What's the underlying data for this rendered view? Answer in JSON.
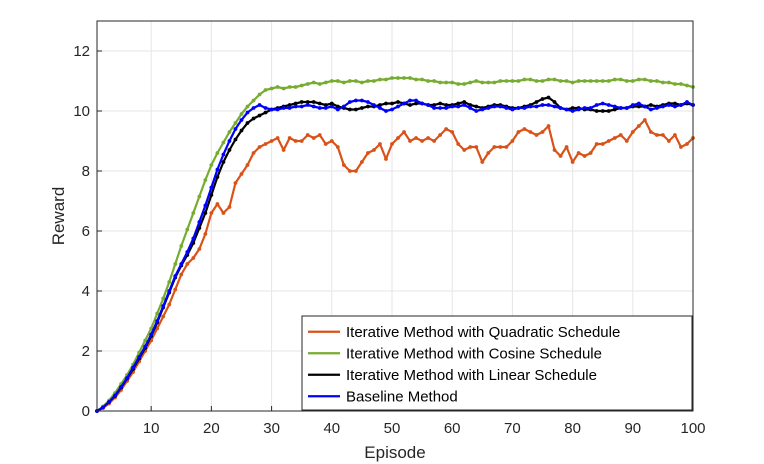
{
  "chart_data": {
    "type": "line",
    "title": "",
    "xlabel": "Episode",
    "ylabel": "Reward",
    "xlim": [
      1,
      100
    ],
    "ylim": [
      0,
      13
    ],
    "xticks": [
      10,
      20,
      30,
      40,
      50,
      60,
      70,
      80,
      90,
      100
    ],
    "yticks": [
      0,
      2,
      4,
      6,
      8,
      10,
      12
    ],
    "grid": true,
    "legend_position": "bottom-right",
    "series": [
      {
        "name": "Iterative Method with Quadratic Schedule",
        "color": "#D95319",
        "markers": true,
        "x": [
          1,
          2,
          3,
          4,
          5,
          6,
          7,
          8,
          9,
          10,
          11,
          12,
          13,
          14,
          15,
          16,
          17,
          18,
          19,
          20,
          21,
          22,
          23,
          24,
          25,
          26,
          27,
          28,
          29,
          30,
          31,
          32,
          33,
          34,
          35,
          36,
          37,
          38,
          39,
          40,
          41,
          42,
          43,
          44,
          45,
          46,
          47,
          48,
          49,
          50,
          51,
          52,
          53,
          54,
          55,
          56,
          57,
          58,
          59,
          60,
          61,
          62,
          63,
          64,
          65,
          66,
          67,
          68,
          69,
          70,
          71,
          72,
          73,
          74,
          75,
          76,
          77,
          78,
          79,
          80,
          81,
          82,
          83,
          84,
          85,
          86,
          87,
          88,
          89,
          90,
          91,
          92,
          93,
          94,
          95,
          96,
          97,
          98,
          99,
          100
        ],
        "y": [
          0.0,
          0.1,
          0.25,
          0.45,
          0.7,
          1.0,
          1.3,
          1.65,
          2.0,
          2.35,
          2.75,
          3.15,
          3.55,
          4.05,
          4.55,
          4.9,
          5.1,
          5.4,
          5.9,
          6.6,
          6.9,
          6.6,
          6.8,
          7.6,
          7.9,
          8.2,
          8.6,
          8.8,
          8.9,
          9.0,
          9.1,
          8.7,
          9.1,
          9.0,
          9.0,
          9.2,
          9.1,
          9.2,
          8.9,
          9.0,
          8.8,
          8.2,
          8.0,
          8.0,
          8.3,
          8.6,
          8.7,
          8.9,
          8.4,
          8.9,
          9.1,
          9.3,
          9.0,
          9.1,
          9.0,
          9.1,
          9.0,
          9.2,
          9.4,
          9.3,
          8.9,
          8.7,
          8.8,
          8.8,
          8.3,
          8.6,
          8.8,
          8.8,
          8.8,
          9.0,
          9.3,
          9.4,
          9.3,
          9.2,
          9.3,
          9.5,
          8.7,
          8.5,
          8.8,
          8.3,
          8.6,
          8.5,
          8.6,
          8.9,
          8.9,
          9.0,
          9.1,
          9.2,
          9.0,
          9.3,
          9.5,
          9.7,
          9.3,
          9.2,
          9.2,
          9.0,
          9.2,
          8.8,
          8.9,
          9.1
        ]
      },
      {
        "name": "Iterative Method with Cosine Schedule",
        "color": "#77AC30",
        "markers": true,
        "x": [
          1,
          2,
          3,
          4,
          5,
          6,
          7,
          8,
          9,
          10,
          11,
          12,
          13,
          14,
          15,
          16,
          17,
          18,
          19,
          20,
          21,
          22,
          23,
          24,
          25,
          26,
          27,
          28,
          29,
          30,
          31,
          32,
          33,
          34,
          35,
          36,
          37,
          38,
          39,
          40,
          41,
          42,
          43,
          44,
          45,
          46,
          47,
          48,
          49,
          50,
          51,
          52,
          53,
          54,
          55,
          56,
          57,
          58,
          59,
          60,
          61,
          62,
          63,
          64,
          65,
          66,
          67,
          68,
          69,
          70,
          71,
          72,
          73,
          74,
          75,
          76,
          77,
          78,
          79,
          80,
          81,
          82,
          83,
          84,
          85,
          86,
          87,
          88,
          89,
          90,
          91,
          92,
          93,
          94,
          95,
          96,
          97,
          98,
          99,
          100
        ],
        "y": [
          0.0,
          0.15,
          0.35,
          0.6,
          0.9,
          1.2,
          1.55,
          1.95,
          2.35,
          2.75,
          3.25,
          3.75,
          4.3,
          4.9,
          5.5,
          6.05,
          6.6,
          7.15,
          7.7,
          8.2,
          8.6,
          8.95,
          9.3,
          9.6,
          9.9,
          10.15,
          10.35,
          10.55,
          10.7,
          10.75,
          10.8,
          10.75,
          10.8,
          10.8,
          10.85,
          10.9,
          10.95,
          10.9,
          10.95,
          11.0,
          11.0,
          10.95,
          11.0,
          11.0,
          10.95,
          11.0,
          11.0,
          11.05,
          11.05,
          11.1,
          11.1,
          11.1,
          11.1,
          11.05,
          11.05,
          11.0,
          11.0,
          10.95,
          10.95,
          10.95,
          10.9,
          10.9,
          10.95,
          11.0,
          10.95,
          10.95,
          10.95,
          11.0,
          11.0,
          11.0,
          11.0,
          11.05,
          11.05,
          11.0,
          11.0,
          11.05,
          11.05,
          11.0,
          11.0,
          10.95,
          11.0,
          11.0,
          11.0,
          11.0,
          11.0,
          11.0,
          11.05,
          11.05,
          11.0,
          11.0,
          11.05,
          11.05,
          11.0,
          11.0,
          10.95,
          10.95,
          10.9,
          10.9,
          10.85,
          10.8
        ]
      },
      {
        "name": "Iterative Method with Linear Schedule",
        "color": "#000000",
        "markers": true,
        "x": [
          1,
          2,
          3,
          4,
          5,
          6,
          7,
          8,
          9,
          10,
          11,
          12,
          13,
          14,
          15,
          16,
          17,
          18,
          19,
          20,
          21,
          22,
          23,
          24,
          25,
          26,
          27,
          28,
          29,
          30,
          31,
          32,
          33,
          34,
          35,
          36,
          37,
          38,
          39,
          40,
          41,
          42,
          43,
          44,
          45,
          46,
          47,
          48,
          49,
          50,
          51,
          52,
          53,
          54,
          55,
          56,
          57,
          58,
          59,
          60,
          61,
          62,
          63,
          64,
          65,
          66,
          67,
          68,
          69,
          70,
          71,
          72,
          73,
          74,
          75,
          76,
          77,
          78,
          79,
          80,
          81,
          82,
          83,
          84,
          85,
          86,
          87,
          88,
          89,
          90,
          91,
          92,
          93,
          94,
          95,
          96,
          97,
          98,
          99,
          100
        ],
        "y": [
          0.0,
          0.12,
          0.3,
          0.5,
          0.78,
          1.08,
          1.4,
          1.75,
          2.1,
          2.5,
          2.95,
          3.45,
          3.95,
          4.45,
          4.85,
          5.2,
          5.6,
          6.1,
          6.6,
          7.2,
          7.8,
          8.3,
          8.7,
          9.05,
          9.35,
          9.6,
          9.75,
          9.85,
          9.95,
          10.05,
          10.1,
          10.15,
          10.2,
          10.25,
          10.3,
          10.3,
          10.3,
          10.25,
          10.2,
          10.25,
          10.15,
          10.1,
          10.05,
          10.05,
          10.1,
          10.15,
          10.15,
          10.2,
          10.25,
          10.25,
          10.3,
          10.25,
          10.2,
          10.25,
          10.25,
          10.2,
          10.2,
          10.25,
          10.2,
          10.2,
          10.25,
          10.3,
          10.2,
          10.15,
          10.1,
          10.15,
          10.2,
          10.2,
          10.15,
          10.1,
          10.1,
          10.15,
          10.2,
          10.3,
          10.4,
          10.45,
          10.3,
          10.1,
          10.05,
          10.1,
          10.1,
          10.05,
          10.05,
          10.0,
          10.0,
          10.0,
          10.05,
          10.1,
          10.1,
          10.15,
          10.15,
          10.15,
          10.2,
          10.15,
          10.2,
          10.25,
          10.25,
          10.2,
          10.25,
          10.2
        ]
      },
      {
        "name": "Baseline Method",
        "color": "#0000FF",
        "markers": true,
        "x": [
          1,
          2,
          3,
          4,
          5,
          6,
          7,
          8,
          9,
          10,
          11,
          12,
          13,
          14,
          15,
          16,
          17,
          18,
          19,
          20,
          21,
          22,
          23,
          24,
          25,
          26,
          27,
          28,
          29,
          30,
          31,
          32,
          33,
          34,
          35,
          36,
          37,
          38,
          39,
          40,
          41,
          42,
          43,
          44,
          45,
          46,
          47,
          48,
          49,
          50,
          51,
          52,
          53,
          54,
          55,
          56,
          57,
          58,
          59,
          60,
          61,
          62,
          63,
          64,
          65,
          66,
          67,
          68,
          69,
          70,
          71,
          72,
          73,
          74,
          75,
          76,
          77,
          78,
          79,
          80,
          81,
          82,
          83,
          84,
          85,
          86,
          87,
          88,
          89,
          90,
          91,
          92,
          93,
          94,
          95,
          96,
          97,
          98,
          99,
          100
        ],
        "y": [
          0.0,
          0.12,
          0.3,
          0.52,
          0.8,
          1.1,
          1.45,
          1.8,
          2.15,
          2.55,
          3.0,
          3.5,
          4.0,
          4.5,
          4.9,
          5.3,
          5.75,
          6.3,
          6.85,
          7.45,
          8.05,
          8.55,
          9.0,
          9.4,
          9.7,
          9.95,
          10.1,
          10.2,
          10.1,
          10.05,
          10.05,
          10.1,
          10.1,
          10.15,
          10.15,
          10.2,
          10.15,
          10.1,
          10.1,
          10.15,
          10.05,
          10.15,
          10.3,
          10.35,
          10.35,
          10.3,
          10.2,
          10.1,
          10.0,
          10.05,
          10.15,
          10.25,
          10.35,
          10.35,
          10.25,
          10.2,
          10.1,
          10.1,
          10.1,
          10.15,
          10.15,
          10.2,
          10.1,
          10.0,
          10.05,
          10.1,
          10.15,
          10.15,
          10.1,
          10.05,
          10.1,
          10.1,
          10.15,
          10.15,
          10.2,
          10.2,
          10.15,
          10.1,
          10.05,
          10.0,
          10.05,
          10.1,
          10.1,
          10.2,
          10.25,
          10.2,
          10.15,
          10.1,
          10.1,
          10.2,
          10.25,
          10.15,
          10.05,
          10.1,
          10.15,
          10.2,
          10.15,
          10.2,
          10.3,
          10.2
        ]
      }
    ]
  }
}
